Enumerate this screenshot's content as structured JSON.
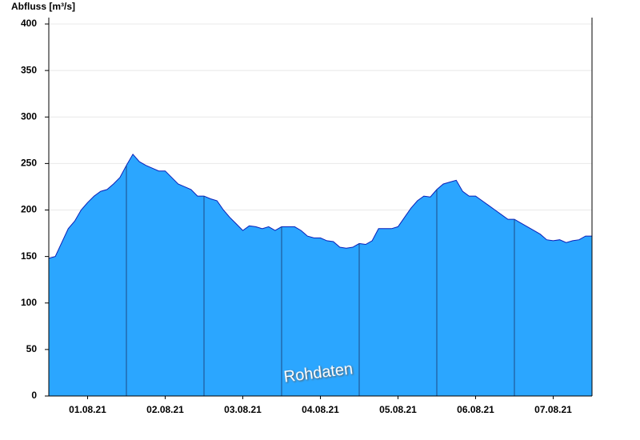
{
  "chart_data": {
    "type": "area",
    "y_label": "Abfluss [m³/s]",
    "annotation": "Rohdaten",
    "color": "#2ba6ff",
    "line_color": "#0a1fb8",
    "x": [
      0,
      2,
      4,
      6,
      8,
      10,
      12,
      14,
      16,
      18,
      20,
      22,
      24,
      26,
      28,
      30,
      32,
      34,
      36,
      38,
      40,
      42,
      44,
      46,
      48,
      50,
      52,
      54,
      56,
      58,
      60,
      62,
      64,
      66,
      68,
      70,
      72,
      74,
      76,
      78,
      80,
      82,
      84,
      86,
      88,
      90,
      92,
      94,
      96,
      98,
      100,
      102,
      104,
      106,
      108,
      110,
      112,
      114,
      116,
      118,
      120,
      122,
      124,
      126,
      128,
      130,
      132,
      134,
      136,
      138,
      140,
      142,
      144,
      146,
      148,
      150,
      152,
      154,
      156,
      158,
      160,
      162,
      164,
      166,
      168
    ],
    "values": [
      148,
      150,
      165,
      180,
      188,
      200,
      208,
      215,
      220,
      222,
      228,
      235,
      248,
      260,
      252,
      248,
      245,
      242,
      242,
      235,
      228,
      225,
      222,
      215,
      215,
      212,
      210,
      200,
      192,
      185,
      178,
      183,
      182,
      180,
      182,
      178,
      182,
      182,
      182,
      178,
      172,
      170,
      170,
      167,
      166,
      160,
      159,
      160,
      164,
      163,
      167,
      180,
      180,
      180,
      182,
      192,
      202,
      210,
      215,
      214,
      222,
      228,
      230,
      232,
      220,
      215,
      215,
      210,
      205,
      200,
      195,
      190,
      190,
      186,
      182,
      178,
      174,
      168,
      167,
      168,
      165,
      167,
      168,
      172,
      172
    ],
    "xlim": [
      0,
      168
    ],
    "xticks": [
      {
        "value": 12,
        "label": "01.08.21"
      },
      {
        "value": 36,
        "label": "02.08.21"
      },
      {
        "value": 60,
        "label": "03.08.21"
      },
      {
        "value": 84,
        "label": "04.08.21"
      },
      {
        "value": 108,
        "label": "05.08.21"
      },
      {
        "value": 132,
        "label": "06.08.21"
      },
      {
        "value": 156,
        "label": "07.08.21"
      }
    ],
    "ylim": [
      0,
      400
    ],
    "yticks": [
      0,
      50,
      100,
      150,
      200,
      250,
      300,
      350,
      400
    ],
    "grid": true
  }
}
